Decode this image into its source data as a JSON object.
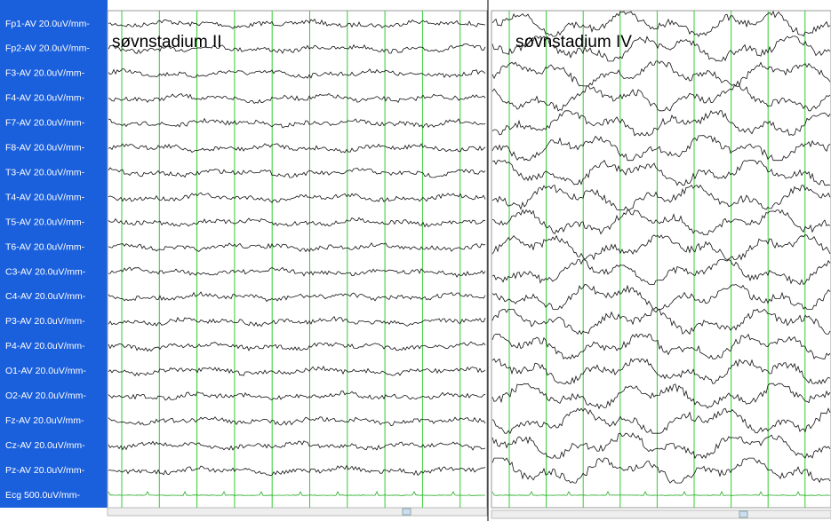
{
  "channels": [
    "Fp1-AV 20.0uV/mm-",
    "Fp2-AV 20.0uV/mm-",
    "F3-AV 20.0uV/mm-",
    "F4-AV 20.0uV/mm-",
    "F7-AV 20.0uV/mm-",
    "F8-AV 20.0uV/mm-",
    "T3-AV 20.0uV/mm-",
    "T4-AV 20.0uV/mm-",
    "T5-AV 20.0uV/mm-",
    "T6-AV 20.0uV/mm-",
    "C3-AV 20.0uV/mm-",
    "C4-AV 20.0uV/mm-",
    "P3-AV 20.0uV/mm-",
    "P4-AV 20.0uV/mm-",
    "O1-AV 20.0uV/mm-",
    "O2-AV 20.0uV/mm-",
    "Fz-AV 20.0uV/mm-",
    "Cz-AV 20.0uV/mm-",
    "Pz-AV 20.0uV/mm-",
    "Ecg 500.0uV/mm-"
  ],
  "panels": [
    {
      "title": "søvnstadium II"
    },
    {
      "title": "søvnstadium IV"
    }
  ]
}
